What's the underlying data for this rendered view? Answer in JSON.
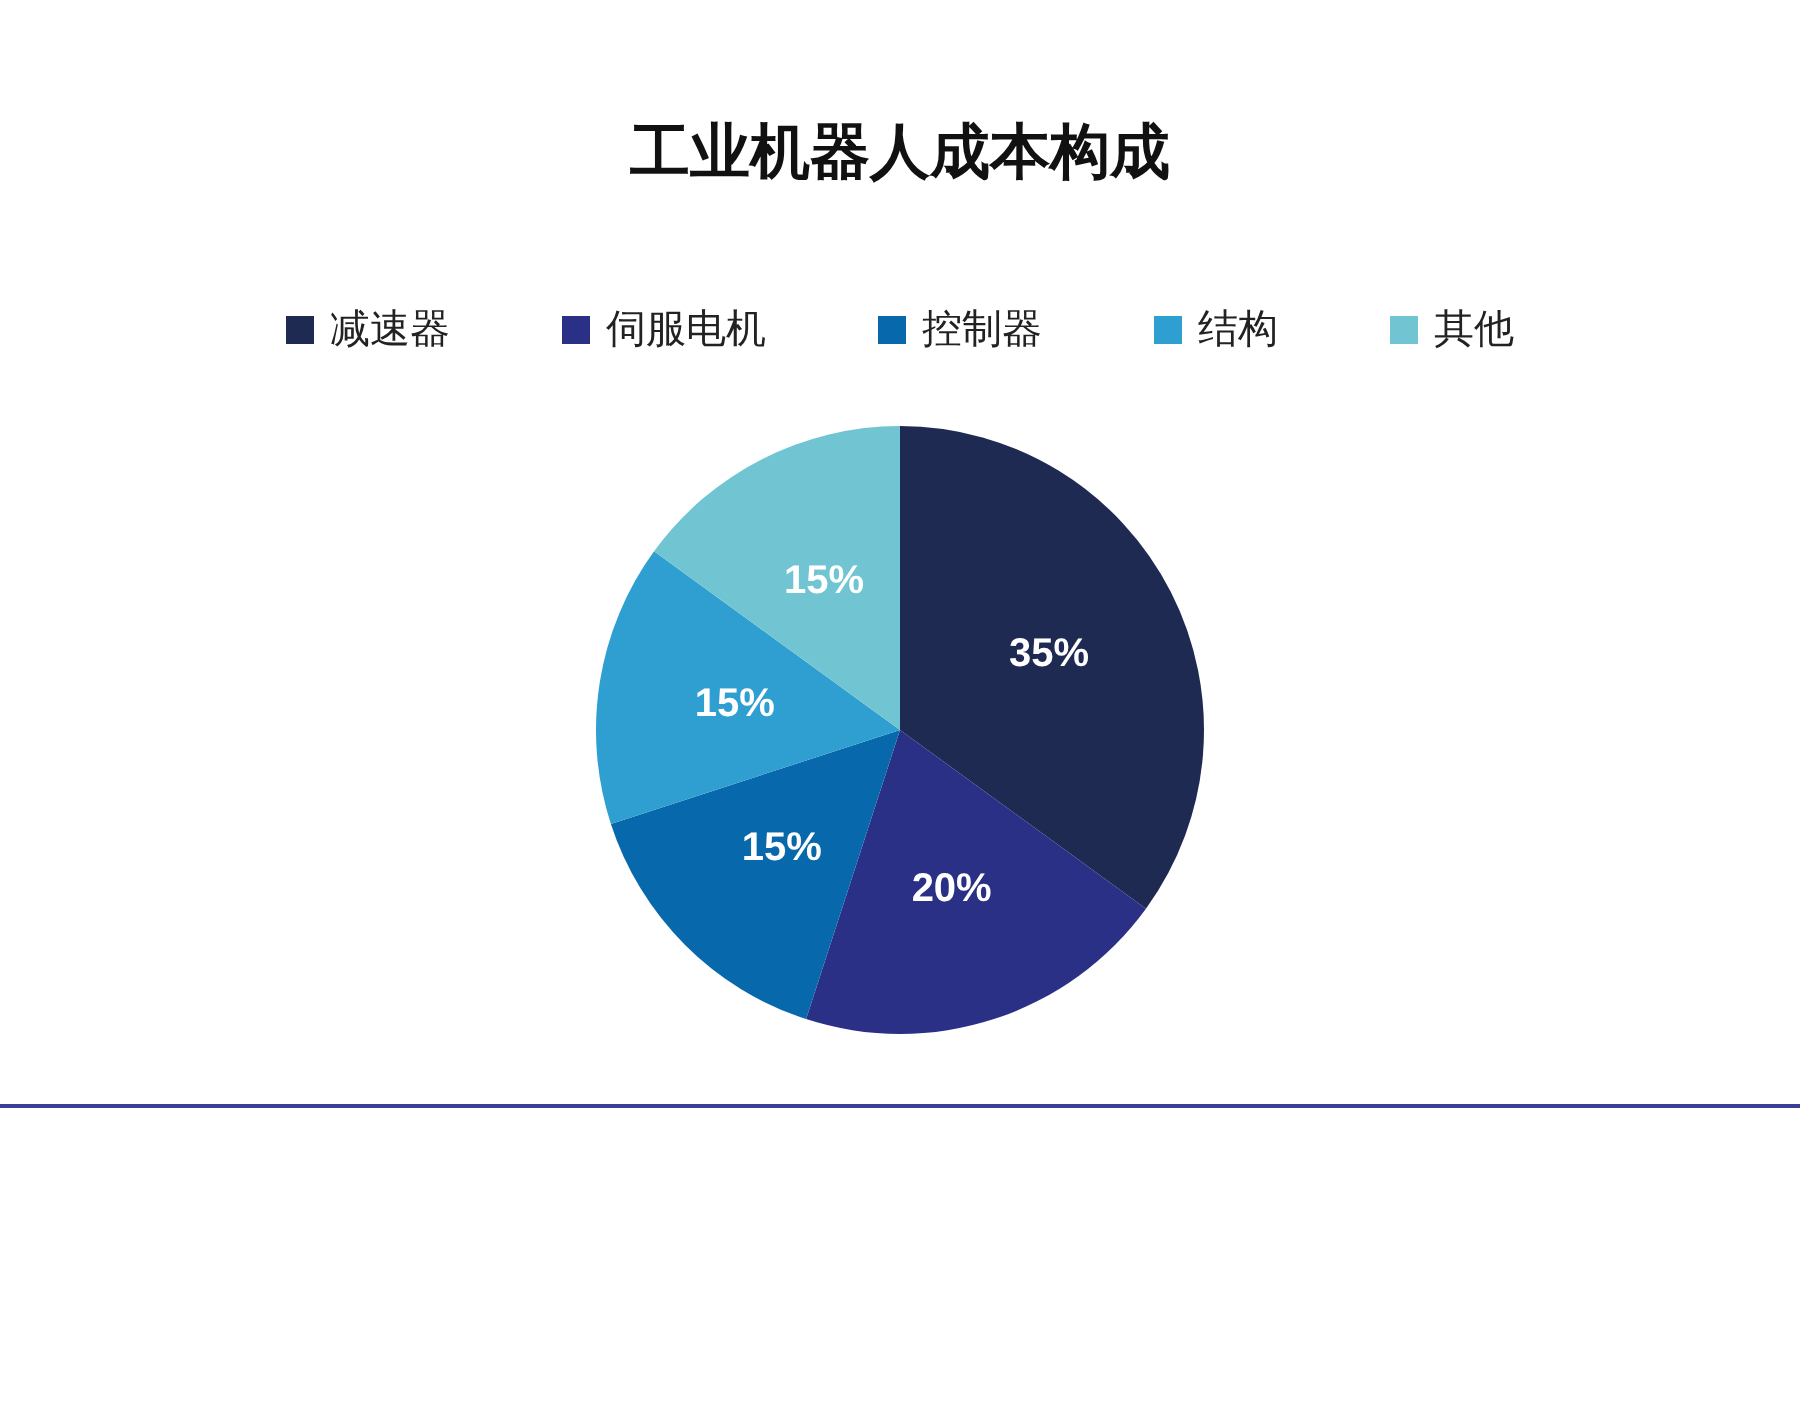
{
  "chart_data": {
    "type": "pie",
    "title": "工业机器人成本构成",
    "categories": [
      "减速器",
      "伺服电机",
      "控制器",
      "结构",
      "其他"
    ],
    "values": [
      35,
      20,
      15,
      15,
      15
    ],
    "colors": [
      "#1e2a52",
      "#2b3087",
      "#0868ac",
      "#2f9fd2",
      "#71c5d3"
    ],
    "value_labels": [
      "35%",
      "20%",
      "15%",
      "15%",
      "15%"
    ],
    "legend": "top"
  }
}
